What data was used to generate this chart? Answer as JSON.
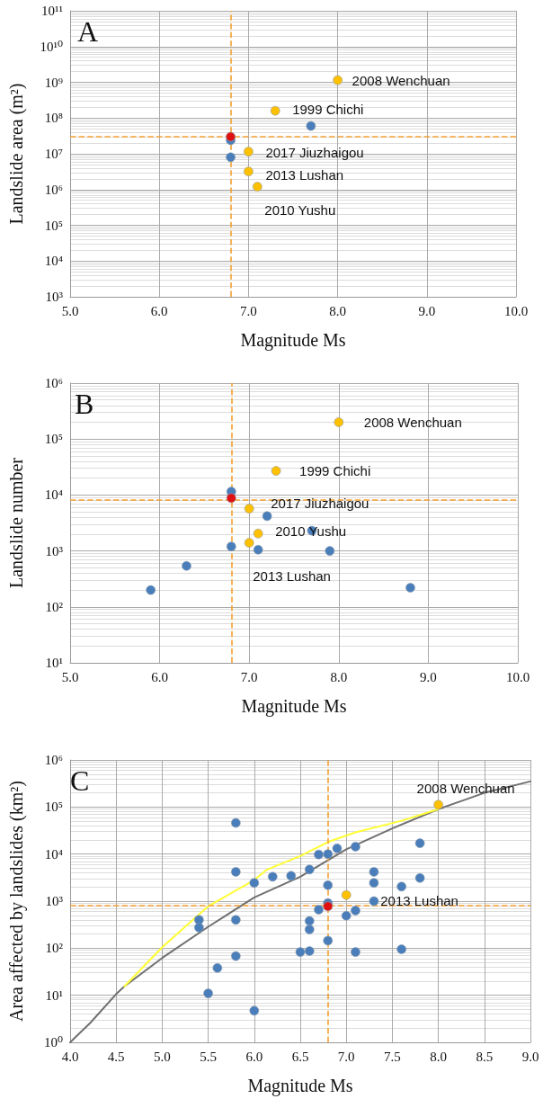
{
  "chart_data": [
    {
      "type": "scatter",
      "title": "A",
      "xlabel": "Magnitude Ms",
      "ylabel": "Landslide area (m²)",
      "log": "y",
      "grid": true,
      "marker": "circle",
      "xlim": [
        5,
        10
      ],
      "xticks": [
        {
          "value": 5,
          "label": "5.0"
        },
        {
          "value": 6,
          "label": "6.0"
        },
        {
          "value": 7,
          "label": "7.0"
        },
        {
          "value": 8,
          "label": "8.0"
        },
        {
          "value": 9,
          "label": "9.0"
        },
        {
          "value": 10,
          "label": "10.0"
        }
      ],
      "ylim": [
        1000,
        100000000000
      ],
      "yticks": [
        {
          "value": 1000,
          "label": "10³"
        },
        {
          "value": 10000,
          "label": "10⁴"
        },
        {
          "value": 100000,
          "label": "10⁵"
        },
        {
          "value": 1000000,
          "label": "10⁶"
        },
        {
          "value": 10000000,
          "label": "10⁷"
        },
        {
          "value": 100000000,
          "label": "10⁸"
        },
        {
          "value": 1000000000,
          "label": "10⁹"
        },
        {
          "value": 10000000000,
          "label": "10¹⁰"
        },
        {
          "value": 100000000000,
          "label": "10¹¹"
        }
      ],
      "series": [
        {
          "color": "#4a7ebb",
          "x": [
            7.7,
            6.8,
            6.8
          ],
          "values": [
            60000000,
            24000000,
            8000000
          ]
        },
        {
          "color": "#ffc000",
          "x": [
            8.0,
            7.3,
            7.0,
            7.0,
            7.1
          ],
          "values": [
            1150000000,
            160000000,
            11500000,
            3200000,
            1200000
          ]
        },
        {
          "color": "#e01010",
          "x": [
            6.8
          ],
          "values": [
            30000000
          ]
        }
      ],
      "ref_lines": [
        {
          "axis": "x",
          "value": 6.8,
          "color": "#f5a030",
          "line_style": "dashed"
        },
        {
          "axis": "y",
          "value": 30000000,
          "color": "#f5a030",
          "line_style": "dashed"
        }
      ],
      "annotations": [
        {
          "text": "2008 Wenchuan",
          "x": 8.0,
          "y": 1150000000
        },
        {
          "text": "1999 Chichi",
          "x": 7.3,
          "y": 160000000
        },
        {
          "text": "2017 Jiuzhaigou",
          "x": 7.0,
          "y": 11500000
        },
        {
          "text": "2013 Lushan",
          "x": 7.0,
          "y": 3200000
        },
        {
          "text": "2010 Yushu",
          "x": 7.1,
          "y": 1200000
        }
      ]
    },
    {
      "type": "scatter",
      "title": "B",
      "xlabel": "Magnitude Ms",
      "ylabel": "Landslide number",
      "log": "y",
      "grid": true,
      "marker": "circle",
      "xlim": [
        5,
        10
      ],
      "xticks": [
        {
          "value": 5,
          "label": "5.0"
        },
        {
          "value": 6,
          "label": "6.0"
        },
        {
          "value": 7,
          "label": "7.0"
        },
        {
          "value": 8,
          "label": "8.0"
        },
        {
          "value": 9,
          "label": "9.0"
        },
        {
          "value": 10,
          "label": "10.0"
        }
      ],
      "ylim": [
        10,
        1000000
      ],
      "yticks": [
        {
          "value": 10,
          "label": "10¹"
        },
        {
          "value": 100,
          "label": "10²"
        },
        {
          "value": 1000,
          "label": "10³"
        },
        {
          "value": 10000,
          "label": "10⁴"
        },
        {
          "value": 100000,
          "label": "10⁵"
        },
        {
          "value": 1000000,
          "label": "10⁶"
        }
      ],
      "series": [
        {
          "color": "#4a7ebb",
          "x": [
            6.8,
            7.2,
            7.7,
            6.8,
            7.1,
            7.9,
            6.3,
            5.9,
            8.8
          ],
          "values": [
            11500,
            4200,
            2300,
            1200,
            1050,
            1000,
            540,
            200,
            220
          ]
        },
        {
          "color": "#ffc000",
          "x": [
            8.0,
            7.3,
            7.0,
            7.1,
            7.0
          ],
          "values": [
            200000,
            27000,
            5700,
            2050,
            1400
          ]
        },
        {
          "color": "#e01010",
          "x": [
            6.8
          ],
          "values": [
            8800
          ]
        }
      ],
      "ref_lines": [
        {
          "axis": "x",
          "value": 6.8,
          "color": "#f5a030",
          "line_style": "dashed"
        },
        {
          "axis": "y",
          "value": 8300,
          "color": "#f5a030",
          "line_style": "dashed"
        }
      ],
      "annotations": [
        {
          "text": "2008 Wenchuan",
          "x": 8.0,
          "y": 200000
        },
        {
          "text": "1999 Chichi",
          "x": 7.3,
          "y": 27000
        },
        {
          "text": "2017 Jiuzhaigou",
          "x": 7.0,
          "y": 5700
        },
        {
          "text": "2010 Yushu",
          "x": 7.1,
          "y": 2050
        },
        {
          "text": "2013 Lushan",
          "x": 7.0,
          "y": 1400
        }
      ]
    },
    {
      "type": "scatter",
      "title": "C",
      "xlabel": "Magnitude Ms",
      "ylabel": "Area affected by landslides (km²)",
      "log": "y",
      "grid": true,
      "marker": "circle",
      "xlim": [
        4,
        9
      ],
      "xticks": [
        {
          "value": 4,
          "label": "4.0"
        },
        {
          "value": 4.5,
          "label": "4.5"
        },
        {
          "value": 5,
          "label": "5.0"
        },
        {
          "value": 5.5,
          "label": "5.5"
        },
        {
          "value": 6,
          "label": "6.0"
        },
        {
          "value": 6.5,
          "label": "6.5"
        },
        {
          "value": 7,
          "label": "7.0"
        },
        {
          "value": 7.5,
          "label": "7.5"
        },
        {
          "value": 8,
          "label": "8.0"
        },
        {
          "value": 8.5,
          "label": "8.5"
        },
        {
          "value": 9,
          "label": "9.0"
        }
      ],
      "ylim": [
        1,
        1000000
      ],
      "yticks": [
        {
          "value": 1,
          "label": "10⁰"
        },
        {
          "value": 10,
          "label": "10¹"
        },
        {
          "value": 100,
          "label": "10²"
        },
        {
          "value": 1000,
          "label": "10³"
        },
        {
          "value": 10000,
          "label": "10⁴"
        },
        {
          "value": 100000,
          "label": "10⁵"
        },
        {
          "value": 1000000,
          "label": "10⁶"
        }
      ],
      "series": [
        {
          "type": "line",
          "marker": "none",
          "color": "#707070",
          "x": [
            4.0,
            4.22,
            4.5,
            4.59,
            5.0,
            5.5,
            6.0,
            6.5,
            7.0,
            7.5,
            8.0,
            8.5,
            9.0
          ],
          "values": [
            1,
            2.6,
            10.6,
            15.5,
            62,
            285,
            1200,
            3300,
            12600,
            35000,
            90000,
            200000,
            350000
          ]
        },
        {
          "type": "line",
          "marker": "none",
          "color": "#ffff33",
          "x": [
            4.59,
            5.0,
            5.5,
            6.0,
            6.14,
            6.5,
            6.8,
            7.1,
            7.6,
            8.0
          ],
          "values": [
            15.5,
            105,
            780,
            2800,
            4700,
            9100,
            18000,
            29000,
            51000,
            90000
          ]
        },
        {
          "color": "#4a7ebb",
          "x": [
            5.8,
            5.8,
            5.8,
            5.8,
            5.4,
            5.4,
            5.6,
            5.5,
            6.0,
            6.0,
            6.2,
            6.4,
            6.6,
            6.7,
            6.8,
            6.9,
            7.1,
            7.8,
            7.8,
            7.3,
            7.3,
            7.3,
            7.6,
            7.6,
            6.8,
            6.8,
            6.7,
            7.0,
            7.1,
            6.6,
            6.6,
            6.8,
            6.5,
            6.6,
            7.1
          ],
          "values": [
            46000,
            4200,
            400,
            68,
            400,
            275,
            38,
            11,
            4.7,
            2450,
            3300,
            3450,
            4700,
            9800,
            10000,
            13200,
            14400,
            17000,
            3100,
            4200,
            2450,
            1000,
            2040,
            95,
            2180,
            910,
            660,
            490,
            630,
            380,
            250,
            145,
            83,
            87,
            83
          ]
        },
        {
          "color": "#ffc000",
          "x": [
            7.0,
            8.0
          ],
          "values": [
            1350,
            112000
          ]
        },
        {
          "color": "#e01010",
          "x": [
            6.8
          ],
          "values": [
            775
          ]
        }
      ],
      "ref_lines": [
        {
          "axis": "x",
          "value": 6.8,
          "color": "#f5a030",
          "line_style": "dashed"
        },
        {
          "axis": "y",
          "value": 800,
          "color": "#f5a030",
          "line_style": "dashed"
        }
      ],
      "annotations": [
        {
          "text": "2008 Wenchuan",
          "x": 8.0,
          "y": 112000
        },
        {
          "text": "2013 Lushan",
          "x": 7.0,
          "y": 1350
        }
      ]
    }
  ]
}
